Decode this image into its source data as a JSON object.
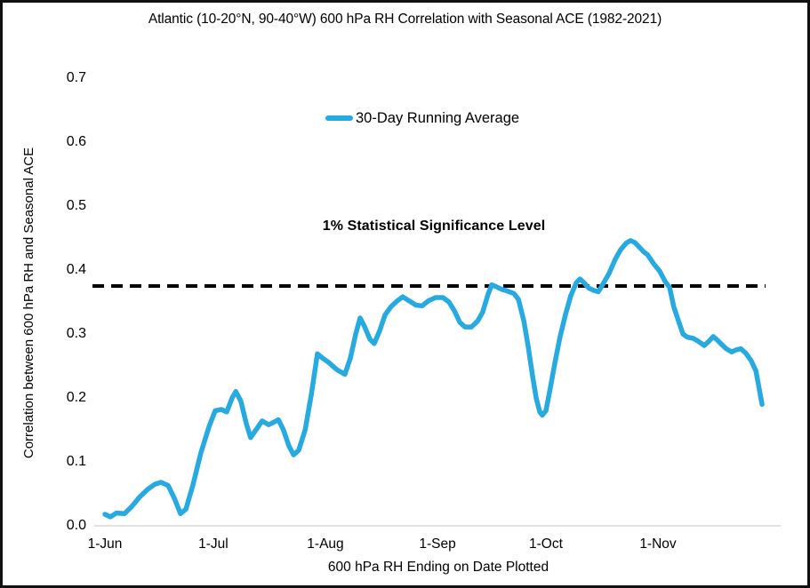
{
  "header": {
    "title": "Atlantic (10-20°N, 90-40°W) 600 hPa RH Correlation with Seasonal ACE (1982-2021)"
  },
  "legend": {
    "label": "30-Day Running Average"
  },
  "annotation": {
    "significance_label": "1% Statistical Significance Level"
  },
  "colors": {
    "series_line": "#27AAE1",
    "reference_line": "#000000",
    "axis_baseline": "#D9D9D9",
    "text": "#000000",
    "background": "#FFFFFF",
    "border": "#111111"
  },
  "chart_data": {
    "type": "line",
    "title": "Atlantic (10-20°N, 90-40°W) 600 hPa RH Correlation with Seasonal ACE (1982-2021)",
    "xlabel": "600 hPa RH Ending on Date Plotted",
    "ylabel": "Correlation between 600 hPa RH and Seasonal ACE",
    "ylim": [
      0.0,
      0.7
    ],
    "y_ticks": [
      0.0,
      0.1,
      0.2,
      0.3,
      0.4,
      0.5,
      0.6,
      0.7
    ],
    "x_tick_labels": [
      "1-Jun",
      "1-Jul",
      "1-Aug",
      "1-Sep",
      "1-Oct",
      "1-Nov"
    ],
    "x_tick_days": [
      0,
      30,
      61,
      92,
      122,
      153
    ],
    "x_domain_days": [
      0,
      182
    ],
    "grid": "off",
    "legend_position": "top-center-inside",
    "reference_line": {
      "label": "1% Statistical Significance Level",
      "value": 0.375,
      "style": "dashed"
    },
    "series": [
      {
        "name": "30-Day Running Average",
        "x_days": [
          0,
          1.5,
          3.2,
          5.4,
          7.4,
          9.6,
          11.8,
          13.8,
          15.5,
          17.5,
          19.2,
          20.9,
          22.4,
          24.4,
          26.6,
          28.8,
          30.5,
          32.2,
          33.7,
          35.2,
          36.2,
          37.6,
          39.1,
          40.3,
          41.8,
          43.5,
          45.3,
          46.7,
          48.0,
          49.4,
          50.9,
          52.2,
          53.6,
          55.4,
          57.1,
          58.8,
          60.3,
          62.0,
          64.2,
          66.4,
          67.9,
          69.4,
          70.6,
          71.8,
          73.3,
          74.5,
          76.0,
          77.5,
          79.2,
          80.9,
          82.4,
          84.1,
          86.1,
          87.8,
          89.5,
          91.5,
          93.5,
          95.2,
          96.7,
          98.2,
          99.6,
          101.4,
          103.1,
          104.5,
          106.0,
          107.0,
          108.2,
          109.7,
          111.4,
          113.2,
          114.4,
          115.9,
          117.1,
          118.3,
          119.3,
          120.3,
          121.0,
          122.0,
          123.2,
          124.5,
          125.9,
          127.4,
          128.9,
          130.4,
          131.4,
          132.6,
          133.8,
          135.3,
          136.5,
          138.0,
          139.5,
          141.2,
          142.7,
          144.2,
          145.4,
          146.6,
          147.8,
          149.1,
          150.1,
          151.8,
          153.5,
          155.0,
          156.2,
          157.4,
          158.7,
          159.9,
          161.1,
          162.8,
          164.3,
          165.8,
          167.0,
          168.3,
          169.5,
          170.7,
          171.9,
          173.4,
          174.6,
          175.9,
          177.3,
          178.8,
          180.1,
          181.0,
          181.8
        ],
        "values": [
          0.018,
          0.014,
          0.02,
          0.019,
          0.03,
          0.045,
          0.057,
          0.065,
          0.068,
          0.063,
          0.043,
          0.019,
          0.026,
          0.065,
          0.115,
          0.155,
          0.18,
          0.182,
          0.178,
          0.2,
          0.21,
          0.195,
          0.16,
          0.138,
          0.15,
          0.164,
          0.158,
          0.162,
          0.166,
          0.15,
          0.125,
          0.111,
          0.118,
          0.15,
          0.205,
          0.269,
          0.262,
          0.255,
          0.244,
          0.237,
          0.262,
          0.3,
          0.325,
          0.312,
          0.292,
          0.285,
          0.305,
          0.33,
          0.343,
          0.352,
          0.358,
          0.352,
          0.345,
          0.344,
          0.352,
          0.357,
          0.357,
          0.35,
          0.336,
          0.318,
          0.311,
          0.311,
          0.32,
          0.334,
          0.362,
          0.377,
          0.374,
          0.37,
          0.367,
          0.363,
          0.354,
          0.32,
          0.28,
          0.235,
          0.2,
          0.178,
          0.173,
          0.18,
          0.215,
          0.255,
          0.295,
          0.33,
          0.36,
          0.38,
          0.386,
          0.38,
          0.372,
          0.368,
          0.366,
          0.38,
          0.395,
          0.417,
          0.432,
          0.442,
          0.446,
          0.443,
          0.436,
          0.428,
          0.424,
          0.41,
          0.398,
          0.382,
          0.373,
          0.342,
          0.32,
          0.3,
          0.295,
          0.293,
          0.288,
          0.282,
          0.288,
          0.296,
          0.29,
          0.283,
          0.277,
          0.272,
          0.275,
          0.277,
          0.27,
          0.258,
          0.242,
          0.215,
          0.19
        ]
      }
    ]
  }
}
